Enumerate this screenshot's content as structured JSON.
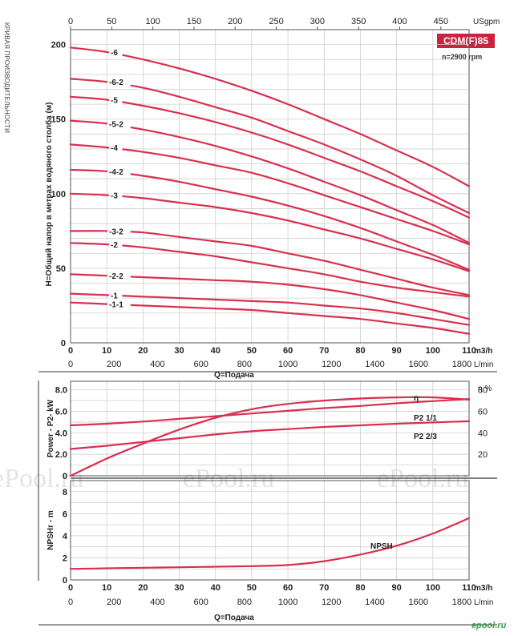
{
  "side_title": "КРИВАЯ ПРОИЗВОДИТЕЛЬНОСТИ",
  "model_badge": "CDM(F)85",
  "speed_label": "n=2900 rpm",
  "watermark": "ePool.ru",
  "watermark_small": "epool.ru",
  "colors": {
    "curve": "#d8304e",
    "badge": "#c9243f",
    "grid": "#cfcfcf"
  },
  "chart_data": [
    {
      "type": "line",
      "name": "head",
      "ylabel": "H=Общий напор в метрах водяного столба (м)",
      "xlabel": "Q=Подача",
      "x_unit": "m3/h",
      "xlim": [
        0,
        110
      ],
      "ylim": [
        0,
        210
      ],
      "x_ticks": [
        0,
        10,
        20,
        30,
        40,
        50,
        60,
        70,
        80,
        90,
        100,
        110
      ],
      "y_ticks": [
        0,
        50,
        100,
        150,
        200
      ],
      "top_axis": {
        "unit": "USgpm",
        "ticks": [
          0,
          50,
          100,
          150,
          200,
          250,
          300,
          350,
          400,
          450
        ]
      },
      "bottom_axis": {
        "unit": "L/min",
        "ticks": [
          0,
          200,
          400,
          600,
          800,
          1000,
          1200,
          1400,
          1600,
          1800
        ]
      },
      "x": [
        0,
        10,
        20,
        30,
        40,
        50,
        60,
        70,
        80,
        90,
        100,
        110
      ],
      "series": [
        {
          "name": "-6",
          "values": [
            198,
            195,
            190,
            184,
            177,
            169,
            160,
            150,
            140,
            129,
            118,
            105
          ]
        },
        {
          "name": "-6-2",
          "values": [
            177,
            175,
            171,
            165,
            158,
            151,
            142,
            133,
            123,
            112,
            99,
            87
          ]
        },
        {
          "name": "-5",
          "values": [
            165,
            163,
            159,
            154,
            148,
            141,
            133,
            124,
            115,
            105,
            95,
            84
          ]
        },
        {
          "name": "-5-2",
          "values": [
            149,
            147,
            143,
            138,
            132,
            125,
            117,
            108,
            99,
            89,
            79,
            67
          ]
        },
        {
          "name": "-4",
          "values": [
            133,
            131,
            128,
            124,
            119,
            114,
            107,
            99,
            91,
            83,
            75,
            66
          ]
        },
        {
          "name": "-4-2",
          "values": [
            116,
            115,
            112,
            108,
            103,
            98,
            92,
            85,
            77,
            68,
            59,
            49
          ]
        },
        {
          "name": "-3",
          "values": [
            100,
            99,
            97,
            94,
            91,
            87,
            82,
            76,
            70,
            63,
            56,
            48
          ]
        },
        {
          "name": "-3-2",
          "values": [
            75,
            75,
            74,
            71,
            68,
            65,
            60,
            55,
            49,
            43,
            37,
            32
          ]
        },
        {
          "name": "-2",
          "values": [
            67,
            66,
            64,
            61,
            58,
            54,
            50,
            46,
            41,
            37,
            34,
            31
          ]
        },
        {
          "name": "-2-2",
          "values": [
            46,
            45,
            44,
            43,
            42,
            41,
            39,
            36,
            32,
            27,
            22,
            16
          ]
        },
        {
          "name": "-1",
          "values": [
            33,
            32,
            31,
            30,
            29,
            28,
            27,
            25,
            23,
            20,
            16,
            12
          ]
        },
        {
          "name": "-1-1",
          "values": [
            27,
            26,
            25,
            24,
            23,
            22,
            20,
            18,
            16,
            13,
            10,
            6
          ]
        }
      ]
    },
    {
      "type": "line",
      "name": "power-efficiency",
      "ylabel": "Power - P2- kW",
      "y_unit_right": "η %",
      "xlim": [
        0,
        110
      ],
      "ylim": [
        0,
        8
      ],
      "y_ticks": [
        0,
        2.0,
        4.0,
        6.0,
        8.0
      ],
      "y_tick_labels": [
        "0",
        "2.0",
        "4.0",
        "6.0",
        "8.0"
      ],
      "y2_ticks": [
        20,
        40,
        60,
        80
      ],
      "y2_range": [
        0,
        80
      ],
      "x": [
        0,
        10,
        20,
        30,
        40,
        50,
        60,
        70,
        80,
        90,
        100,
        110
      ],
      "series": [
        {
          "name": "η",
          "axis": "right",
          "values": [
            0,
            16,
            30,
            43,
            54,
            62,
            67,
            70,
            72,
            73,
            73,
            71
          ]
        },
        {
          "name": "P2 1/1",
          "axis": "left",
          "values": [
            4.7,
            4.85,
            5.05,
            5.3,
            5.55,
            5.8,
            6.05,
            6.3,
            6.5,
            6.75,
            6.95,
            7.15
          ]
        },
        {
          "name": "P2 2/3",
          "axis": "left",
          "values": [
            2.5,
            2.8,
            3.15,
            3.5,
            3.85,
            4.15,
            4.35,
            4.55,
            4.7,
            4.85,
            4.97,
            5.08
          ]
        }
      ]
    },
    {
      "type": "line",
      "name": "npsh",
      "ylabel": "NPSHr - m",
      "xlabel": "Q=Подача",
      "x_unit": "m3/h",
      "xlim": [
        0,
        110
      ],
      "ylim": [
        0,
        9
      ],
      "y_ticks": [
        0,
        2,
        4,
        6,
        8
      ],
      "x_ticks": [
        0,
        10,
        20,
        30,
        40,
        50,
        60,
        70,
        80,
        90,
        100,
        110
      ],
      "bottom_axis": {
        "unit": "L/min",
        "ticks": [
          0,
          200,
          400,
          600,
          800,
          1000,
          1200,
          1400,
          1600,
          1800
        ]
      },
      "x": [
        0,
        10,
        20,
        30,
        40,
        50,
        60,
        70,
        80,
        90,
        100,
        110
      ],
      "series": [
        {
          "name": "NPSH",
          "values": [
            1.0,
            1.05,
            1.1,
            1.15,
            1.2,
            1.25,
            1.35,
            1.7,
            2.3,
            3.1,
            4.2,
            5.6
          ]
        }
      ]
    }
  ]
}
